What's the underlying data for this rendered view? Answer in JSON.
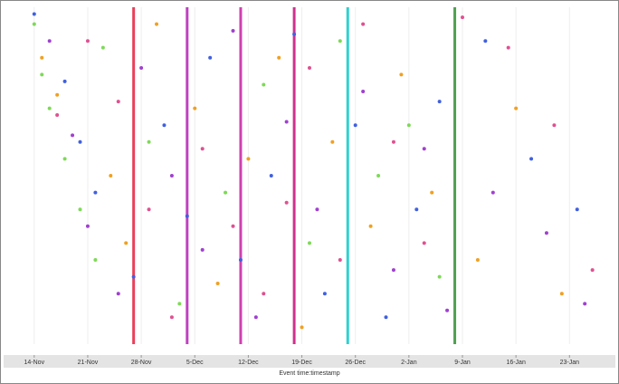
{
  "chart_data": {
    "type": "scatter",
    "xlabel": "Event time:timestamp",
    "xlim": [
      "10-Nov",
      "29-Jan"
    ],
    "ylim": [
      0,
      100
    ],
    "xticks": [
      "14-Nov",
      "21-Nov",
      "28-Nov",
      "5-Dec",
      "12-Dec",
      "19-Dec",
      "26-Dec",
      "2-Jan",
      "9-Jan",
      "16-Jan",
      "23-Jan"
    ],
    "vlines": [
      {
        "x": "27-Nov",
        "color": "#e8405a"
      },
      {
        "x": "4-Dec",
        "color": "#c040c0"
      },
      {
        "x": "11-Dec",
        "color": "#d040b0"
      },
      {
        "x": "18-Dec",
        "color": "#d03090"
      },
      {
        "x": "25-Dec",
        "color": "#30d0d0"
      },
      {
        "x": "8-Jan",
        "color": "#50a050"
      }
    ],
    "series": [
      {
        "color": "#7ed957",
        "x": [
          "14-Nov",
          "15-Nov",
          "16-Nov",
          "18-Nov",
          "20-Nov",
          "22-Nov",
          "23-Nov",
          "29-Nov",
          "3-Dec",
          "9-Dec",
          "14-Dec",
          "20-Dec",
          "24-Dec",
          "29-Dec",
          "2-Jan",
          "6-Jan"
        ],
        "values": [
          95,
          80,
          70,
          55,
          40,
          25,
          88,
          60,
          12,
          45,
          77,
          30,
          90,
          50,
          65,
          20
        ]
      },
      {
        "color": "#a040d0",
        "x": [
          "16-Nov",
          "19-Nov",
          "21-Nov",
          "25-Nov",
          "28-Nov",
          "2-Dec",
          "6-Dec",
          "10-Dec",
          "13-Dec",
          "17-Dec",
          "21-Dec",
          "27-Dec",
          "31-Dec",
          "4-Jan",
          "7-Jan",
          "13-Jan",
          "20-Jan",
          "25-Jan"
        ],
        "values": [
          90,
          62,
          35,
          15,
          82,
          50,
          28,
          93,
          8,
          66,
          40,
          75,
          22,
          58,
          10,
          45,
          33,
          12
        ]
      },
      {
        "color": "#f0a020",
        "x": [
          "15-Nov",
          "17-Nov",
          "24-Nov",
          "26-Nov",
          "30-Nov",
          "5-Dec",
          "8-Dec",
          "12-Dec",
          "16-Dec",
          "19-Dec",
          "23-Dec",
          "28-Dec",
          "1-Jan",
          "5-Jan",
          "11-Jan",
          "16-Jan",
          "22-Jan"
        ],
        "values": [
          85,
          74,
          50,
          30,
          95,
          70,
          18,
          55,
          85,
          5,
          60,
          35,
          80,
          45,
          25,
          70,
          15
        ]
      },
      {
        "color": "#4060e0",
        "x": [
          "14-Nov",
          "18-Nov",
          "20-Nov",
          "22-Nov",
          "27-Nov",
          "1-Dec",
          "4-Dec",
          "7-Dec",
          "11-Dec",
          "15-Dec",
          "18-Dec",
          "22-Dec",
          "26-Dec",
          "30-Dec",
          "3-Jan",
          "6-Jan",
          "12-Jan",
          "18-Jan",
          "24-Jan"
        ],
        "values": [
          98,
          78,
          60,
          45,
          20,
          65,
          38,
          85,
          25,
          50,
          92,
          15,
          65,
          8,
          40,
          72,
          90,
          55,
          40
        ]
      },
      {
        "color": "#e05090",
        "x": [
          "17-Nov",
          "21-Nov",
          "25-Nov",
          "29-Nov",
          "2-Dec",
          "6-Dec",
          "10-Dec",
          "14-Dec",
          "17-Dec",
          "20-Dec",
          "24-Dec",
          "27-Dec",
          "31-Dec",
          "4-Jan",
          "9-Jan",
          "15-Jan",
          "21-Jan",
          "26-Jan"
        ],
        "values": [
          68,
          90,
          72,
          40,
          8,
          58,
          35,
          15,
          42,
          82,
          25,
          95,
          60,
          30,
          97,
          88,
          65,
          22
        ]
      }
    ]
  }
}
